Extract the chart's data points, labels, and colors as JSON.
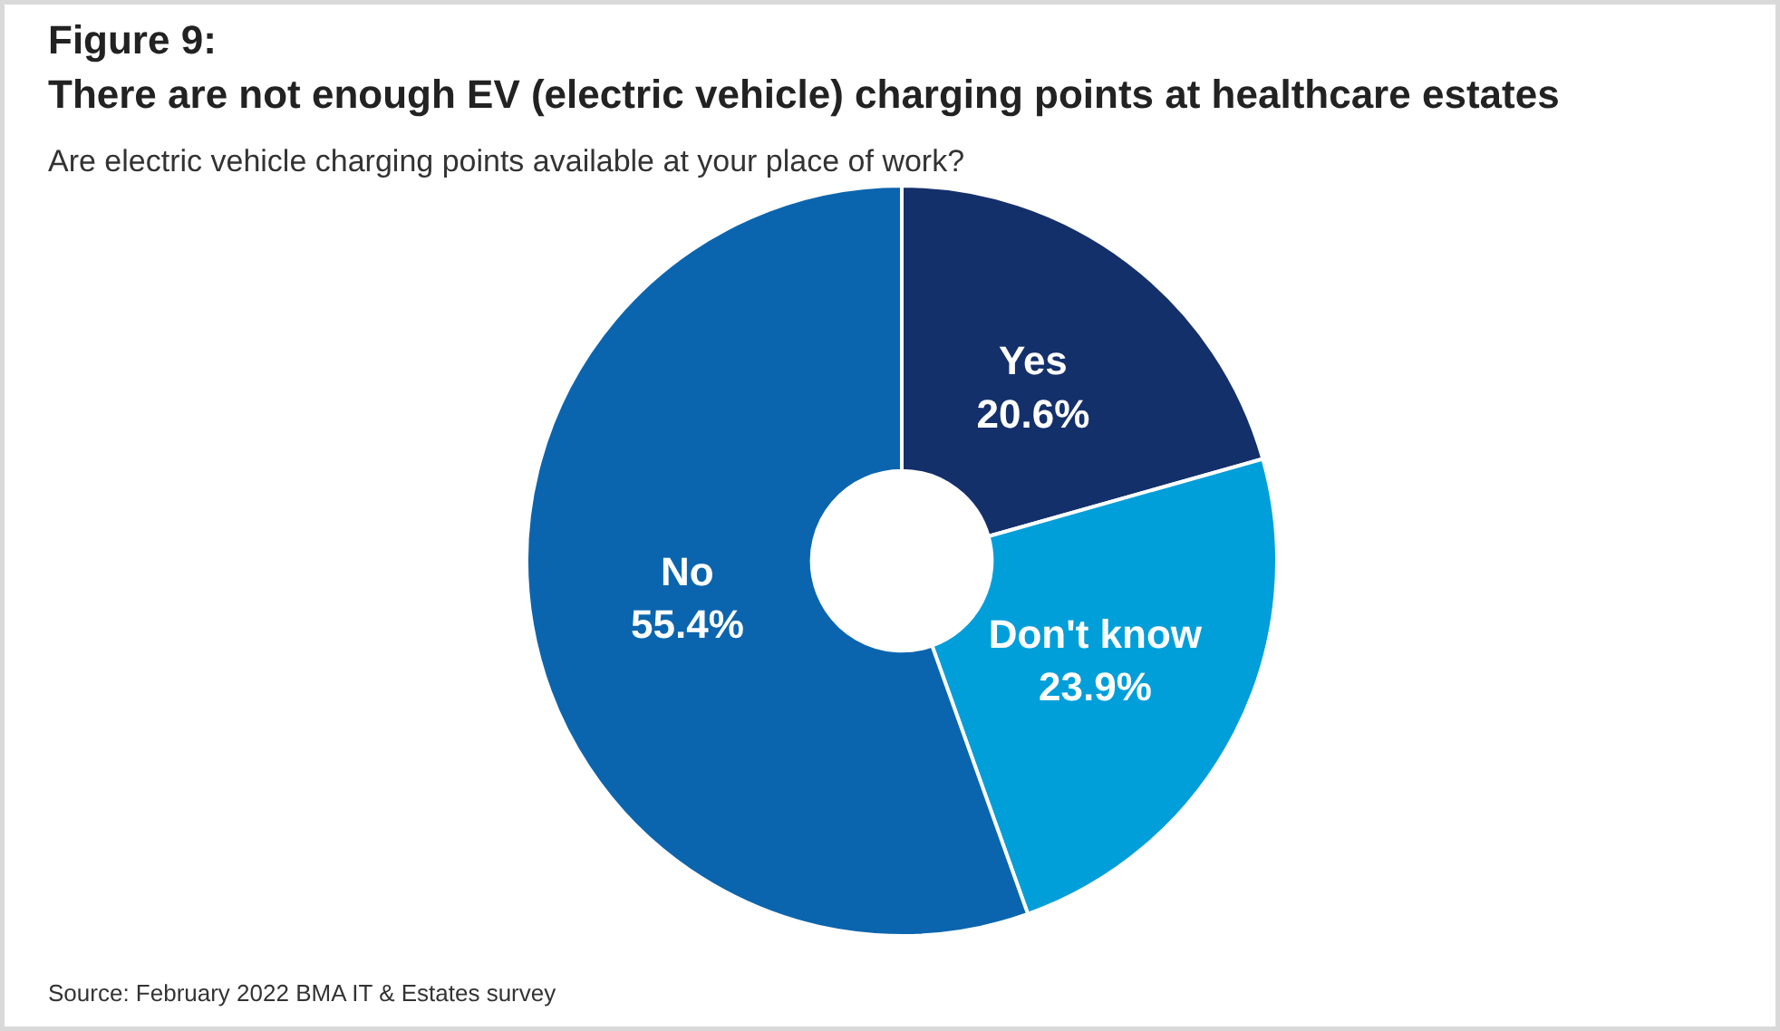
{
  "chart_data": {
    "type": "donut",
    "title": "Figure 9:\nThere are not enough EV (electric vehicle) charging points at healthcare estates",
    "subtitle": "Are electric vehicle charging points available at your place of work?",
    "categories": [
      "Yes",
      "Don't know",
      "No"
    ],
    "values": [
      20.6,
      23.9,
      55.4
    ],
    "colors": [
      "#14306b",
      "#009fda",
      "#0b65ae"
    ],
    "value_labels": [
      "20.6%",
      "23.9%",
      "55.4%"
    ],
    "annotations": [
      "Source: February 2022 BMA IT & Estates survey"
    ]
  }
}
